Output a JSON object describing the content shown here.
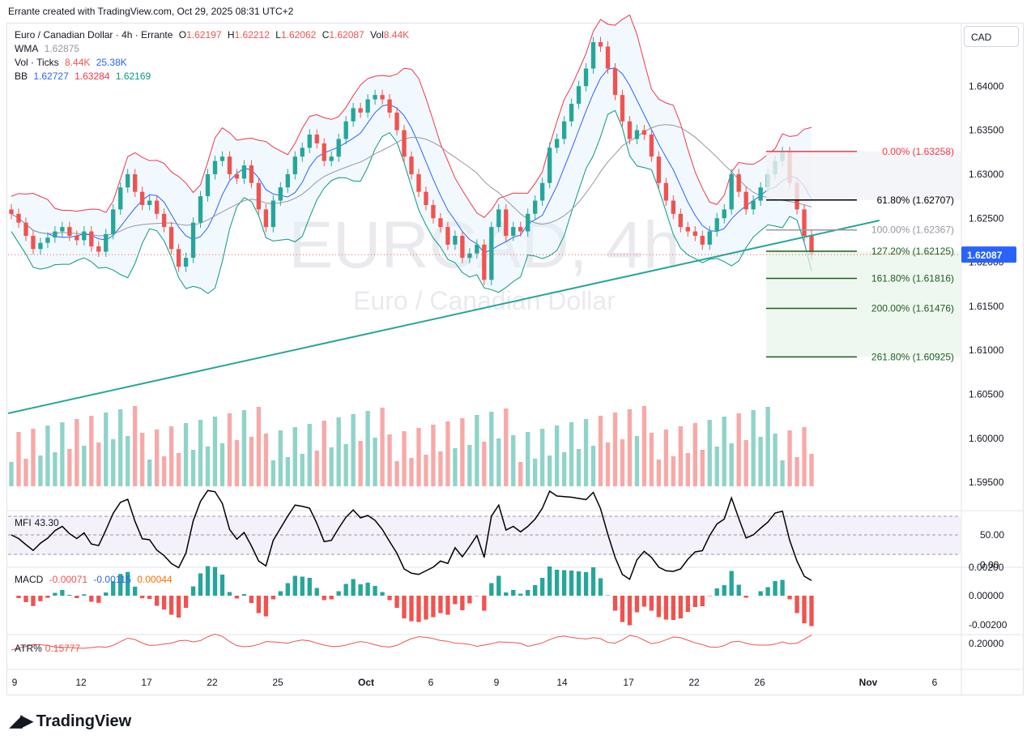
{
  "header_note": "Errante created with TradingView.com, Oct 29, 2025 08:31 UTC+2",
  "currency_button": "CAD",
  "watermark": {
    "symbol": "EURCAD, 4h",
    "name": "Euro / Canadian Dollar"
  },
  "legend": {
    "title": "Euro / Canadian Dollar · 4h · Errante",
    "o_label": "O",
    "o_value": "1.62197",
    "h_label": "H",
    "h_value": "1.62212",
    "l_label": "L",
    "l_value": "1.62062",
    "c_label": "C",
    "c_value": "1.62087",
    "vol_label": "Vol",
    "vol_value": "8.44K",
    "wma_label": "WMA",
    "wma_value": "1.62875",
    "volticks_label": "Vol · Ticks",
    "volticks_v1": "8.44K",
    "volticks_v2": "25.38K",
    "bb_label": "BB",
    "bb_mid": "1.62727",
    "bb_up": "1.63284",
    "bb_low": "1.62169"
  },
  "mfi": {
    "label": "MFI",
    "value": "43.30",
    "ticks": [
      "50.00",
      "0.00"
    ]
  },
  "macd": {
    "label": "MACD",
    "v1": "-0.00071",
    "v2": "-0.00115",
    "v3": "0.00044",
    "ticks": [
      "0.00200",
      "0.00000",
      "-0.00200"
    ]
  },
  "atr": {
    "label": "ATR%",
    "value": "0.15777",
    "ticks": [
      "0.20000"
    ]
  },
  "brand": "TradingView",
  "colors": {
    "up": "#26a69a",
    "down": "#ef5350",
    "bb_upper": "#f23645",
    "bb_mid": "#2962ff",
    "bb_lower": "#089981",
    "trendline": "#26a69a",
    "price_tag": "#2962ff"
  },
  "chart_data": {
    "type": "candlestick",
    "symbol": "EURCAD",
    "timeframe": "4h",
    "price_axis_ticks": [
      "1.64000",
      "1.63500",
      "1.63000",
      "1.62500",
      "1.62000",
      "1.61500",
      "1.61000",
      "1.60500",
      "1.60000",
      "1.59500"
    ],
    "time_axis_labels": [
      "9",
      "12",
      "17",
      "22",
      "25",
      "Oct",
      "6",
      "9",
      "14",
      "17",
      "22",
      "26",
      "Nov",
      "6"
    ],
    "last_price": "1.62087",
    "fibonacci": [
      {
        "level": "0.00% (1.63258)",
        "price": 1.63258,
        "color": "#f23645"
      },
      {
        "level": "61.80% (1.62707)",
        "price": 1.62707,
        "color": "#000000"
      },
      {
        "level": "100.00% (1.62367)",
        "price": 1.62367,
        "color": "#9598a1"
      },
      {
        "level": "127.20% (1.62125)",
        "price": 1.62125,
        "color": "#1b5e20"
      },
      {
        "level": "161.80% (1.61816)",
        "price": 1.61816,
        "color": "#1b5e20"
      },
      {
        "level": "200.00% (1.61476)",
        "price": 1.61476,
        "color": "#1b5e20"
      },
      {
        "level": "261.80% (1.60925)",
        "price": 1.60925,
        "color": "#1b5e20"
      }
    ],
    "close_path": [
      1.6255,
      1.6245,
      1.623,
      1.6215,
      1.6222,
      1.6228,
      1.6235,
      1.624,
      1.623,
      1.6225,
      1.6235,
      1.6218,
      1.6212,
      1.6232,
      1.626,
      1.6285,
      1.63,
      1.628,
      1.6265,
      1.627,
      1.6255,
      1.624,
      1.6215,
      1.6195,
      1.6205,
      1.6245,
      1.6275,
      1.63,
      1.6315,
      1.632,
      1.63,
      1.6295,
      1.631,
      1.629,
      1.626,
      1.624,
      1.627,
      1.6285,
      1.63,
      1.632,
      1.633,
      1.6345,
      1.6335,
      1.6315,
      1.632,
      1.634,
      1.636,
      1.6375,
      1.637,
      1.6385,
      1.639,
      1.6385,
      1.637,
      1.635,
      1.632,
      1.63,
      1.628,
      1.6265,
      1.625,
      1.624,
      1.622,
      1.623,
      1.6205,
      1.621,
      1.622,
      1.618,
      1.624,
      1.626,
      1.623,
      1.624,
      1.6235,
      1.6255,
      1.627,
      1.629,
      1.633,
      1.634,
      1.636,
      1.638,
      1.64,
      1.642,
      1.645,
      1.6445,
      1.642,
      1.639,
      1.636,
      1.634,
      1.635,
      1.6345,
      1.632,
      1.629,
      1.627,
      1.6255,
      1.624,
      1.6235,
      1.623,
      1.622,
      1.6235,
      1.625,
      1.626,
      1.63,
      1.628,
      1.626,
      1.627,
      1.6285,
      1.63,
      1.6315,
      1.6325,
      1.629,
      1.626,
      1.623,
      1.6209
    ]
  }
}
